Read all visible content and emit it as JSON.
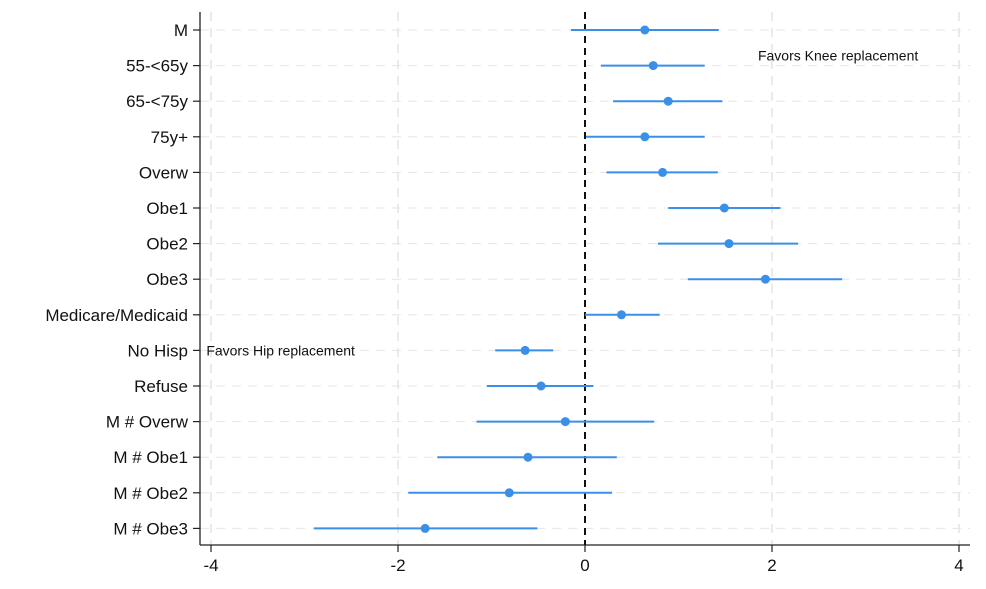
{
  "chart_data": {
    "type": "scatter",
    "subtype": "coefficient-plot",
    "title": "",
    "xlabel": "",
    "ylabel": "",
    "xlim": [
      -4.2,
      4.1
    ],
    "xticks": [
      -4,
      -2,
      0,
      2,
      4
    ],
    "xtick_labels": [
      "-4",
      "-2",
      "0",
      "2",
      "4"
    ],
    "grid": true,
    "reference_line_x": 0,
    "color": "#3a8fe8",
    "annotations": [
      {
        "text": "Favors Knee replacement",
        "x": 1.85,
        "y_category": "55-<65y"
      },
      {
        "text": "Favors Hip replacement",
        "x": -4.05,
        "y_category": "No Hisp"
      }
    ],
    "categories": [
      "M",
      "55-<65y",
      "65-<75y",
      "75y+",
      "Overw",
      "Obe1",
      "Obe2",
      "Obe3",
      "Medicare/Medicaid",
      "No Hisp",
      "Refuse",
      "M # Overw",
      "M # Obe1",
      "M # Obe2",
      "M # Obe3"
    ],
    "series": [
      {
        "estimate": [
          0.64,
          0.73,
          0.89,
          0.64,
          0.83,
          1.49,
          1.54,
          1.93,
          0.39,
          -0.64,
          -0.47,
          -0.21,
          -0.61,
          -0.81,
          -1.71
        ],
        "ci_low": [
          -0.15,
          0.17,
          0.3,
          0.01,
          0.23,
          0.89,
          0.78,
          1.1,
          0.0,
          -0.96,
          -1.05,
          -1.16,
          -1.58,
          -1.89,
          -2.9
        ],
        "ci_high": [
          1.43,
          1.28,
          1.47,
          1.28,
          1.42,
          2.09,
          2.28,
          2.75,
          0.8,
          -0.34,
          0.09,
          0.74,
          0.34,
          0.29,
          -0.51
        ]
      }
    ]
  }
}
